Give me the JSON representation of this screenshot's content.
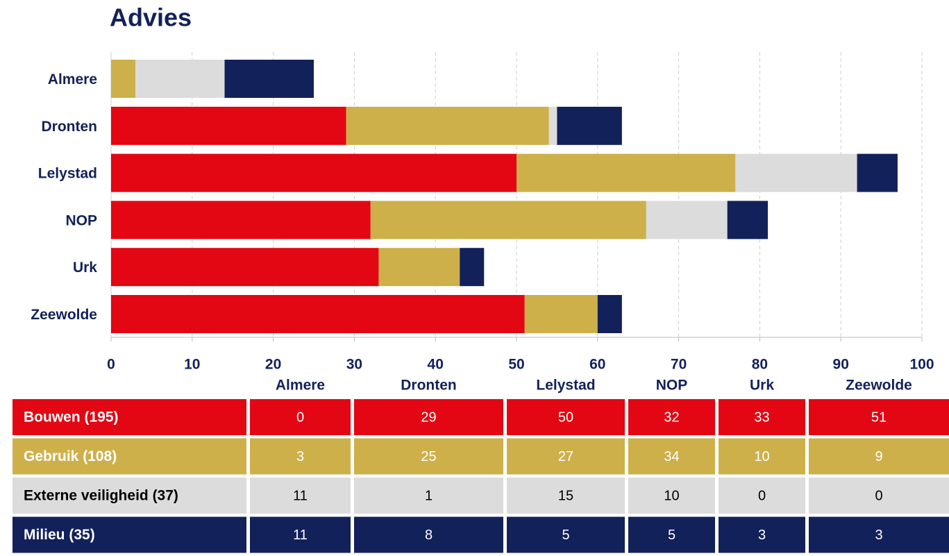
{
  "chart_data": {
    "type": "stacked_bar_horizontal",
    "title": "Advies",
    "categories": [
      "Almere",
      "Dronten",
      "Lelystad",
      "NOP",
      "Urk",
      "Zeewolde"
    ],
    "series": [
      {
        "name": "Bouwen (195)",
        "color": "#e30613",
        "values": [
          0,
          29,
          50,
          32,
          33,
          51
        ]
      },
      {
        "name": "Gebruik (108)",
        "color": "#cdb04a",
        "values": [
          3,
          25,
          27,
          34,
          10,
          9
        ]
      },
      {
        "name": "Externe veiligheid (37)",
        "color": "#dcdcdc",
        "values": [
          11,
          1,
          15,
          10,
          0,
          0
        ]
      },
      {
        "name": "Milieu (35)",
        "color": "#13215a",
        "values": [
          11,
          8,
          5,
          5,
          3,
          3
        ]
      }
    ],
    "xlim": [
      0,
      100
    ],
    "xticks": [
      0,
      10,
      20,
      30,
      40,
      50,
      60,
      70,
      80,
      90,
      100
    ],
    "grid": true
  }
}
